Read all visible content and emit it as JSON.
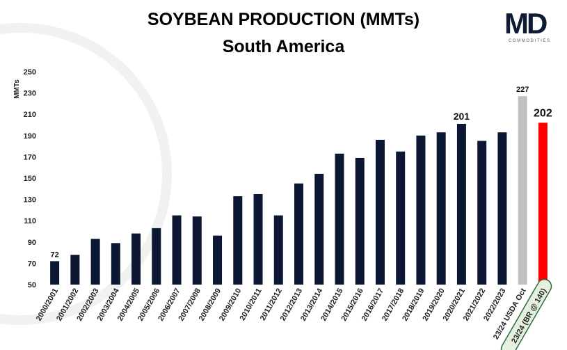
{
  "header": {
    "title": "SOYBEAN PRODUCTION (MMTs)",
    "subtitle": "South America"
  },
  "logo": {
    "mark": "MD",
    "tagline": "COMMODITIES"
  },
  "chart_data": {
    "type": "bar",
    "title": "SOYBEAN PRODUCTION (MMTs)",
    "subtitle": "South America",
    "ylabel": "MMTs",
    "xlabel": "",
    "ylim": [
      50,
      250
    ],
    "yticks": [
      50,
      70,
      90,
      110,
      130,
      150,
      170,
      190,
      210,
      230,
      250
    ],
    "grid": false,
    "categories": [
      "2000/2001",
      "2001/2002",
      "2002/2003",
      "2003/2004",
      "2004/2005",
      "2005/2006",
      "2006/2007",
      "2007/2008",
      "2008/2009",
      "2009/2010",
      "2010/2011",
      "2011/2012",
      "2012/2013",
      "2013/2014",
      "2014/2015",
      "2015/2016",
      "2016/2017",
      "2017/2018",
      "2018/2019",
      "2019/2020",
      "2020/2021",
      "2021/2022",
      "2022/2023",
      "23/24 USDA Oct",
      "23/24 (BR @ 140)"
    ],
    "values": [
      72,
      78,
      93,
      89,
      98,
      103,
      115,
      114,
      96,
      133,
      135,
      115,
      145,
      154,
      173,
      169,
      186,
      175,
      190,
      193,
      201,
      185,
      193,
      227,
      202
    ],
    "data_labels": [
      {
        "index": 0,
        "text": "72"
      },
      {
        "index": 20,
        "text": "201"
      },
      {
        "index": 23,
        "text": "227"
      },
      {
        "index": 24,
        "text": "202"
      }
    ],
    "colors": {
      "default": "#0b1733",
      "usda": "#c0c0c0",
      "forecast": "#ff0000",
      "highlight_outline": "#2e6b3a",
      "highlight_fill": "#e6f0e0"
    },
    "highlighted_category_index": 24
  }
}
